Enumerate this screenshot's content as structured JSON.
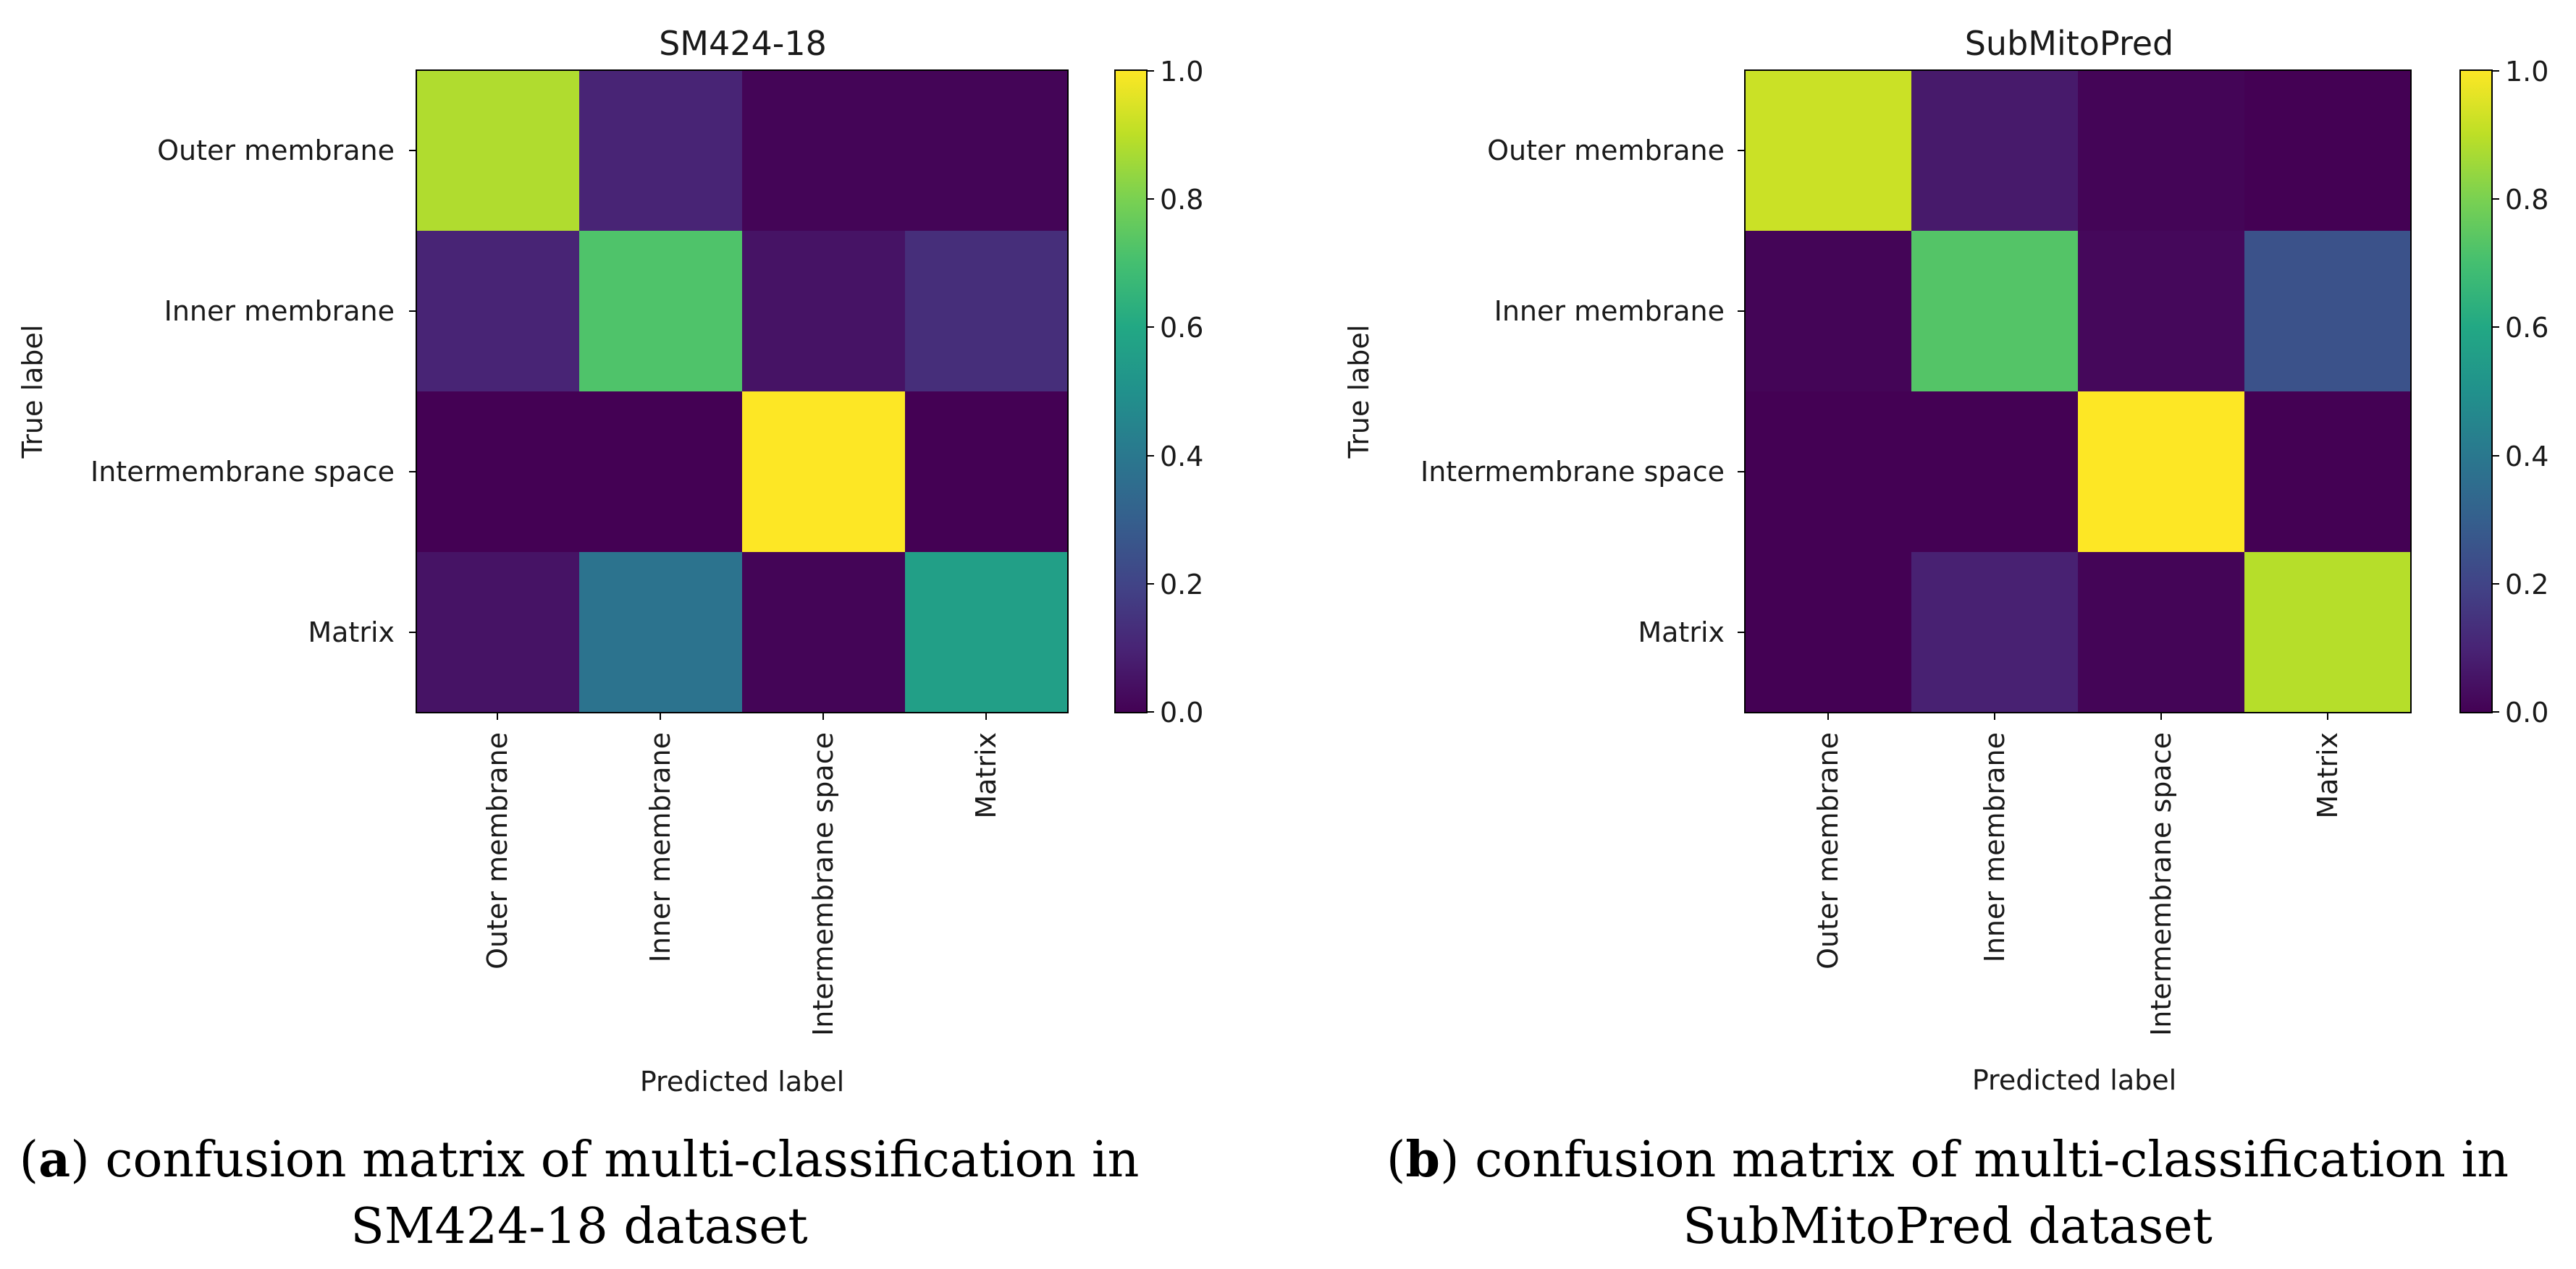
{
  "chart_data": [
    {
      "type": "heatmap",
      "title": "SM424-18",
      "xlabel": "Predicted label",
      "ylabel": "True label",
      "x_categories": [
        "Outer membrane",
        "Inner membrane",
        "Intermembrane space",
        "Matrix"
      ],
      "y_categories": [
        "Outer membrane",
        "Inner membrane",
        "Intermembrane space",
        "Matrix"
      ],
      "values": [
        [
          0.88,
          0.1,
          0.01,
          0.01
        ],
        [
          0.1,
          0.72,
          0.05,
          0.13
        ],
        [
          0.0,
          0.0,
          1.0,
          0.0
        ],
        [
          0.05,
          0.38,
          0.01,
          0.56
        ]
      ],
      "colorbar": {
        "range": [
          0.0,
          1.0
        ],
        "ticks": [
          "0.0",
          "0.2",
          "0.4",
          "0.6",
          "0.8",
          "1.0"
        ],
        "colormap": "viridis"
      }
    },
    {
      "type": "heatmap",
      "title": "SubMitoPred",
      "xlabel": "Predicted label",
      "ylabel": "True label",
      "x_categories": [
        "Outer membrane",
        "Inner membrane",
        "Intermembrane space",
        "Matrix"
      ],
      "y_categories": [
        "Outer membrane",
        "Inner membrane",
        "Intermembrane space",
        "Matrix"
      ],
      "values": [
        [
          0.92,
          0.07,
          0.01,
          0.0
        ],
        [
          0.01,
          0.73,
          0.02,
          0.25
        ],
        [
          0.0,
          0.0,
          1.0,
          0.0
        ],
        [
          0.0,
          0.09,
          0.01,
          0.89
        ]
      ],
      "colorbar": {
        "range": [
          0.0,
          1.0
        ],
        "ticks": [
          "0.0",
          "0.2",
          "0.4",
          "0.6",
          "0.8",
          "1.0"
        ],
        "colormap": "viridis"
      }
    }
  ],
  "captions": [
    {
      "letter": "a",
      "line1_rest": ") confusion matrix of multi-classification in",
      "line2": "SM424-18 dataset"
    },
    {
      "letter": "b",
      "line1_rest": ") confusion matrix of multi-classification in",
      "line2": "SubMitoPred dataset"
    }
  ]
}
